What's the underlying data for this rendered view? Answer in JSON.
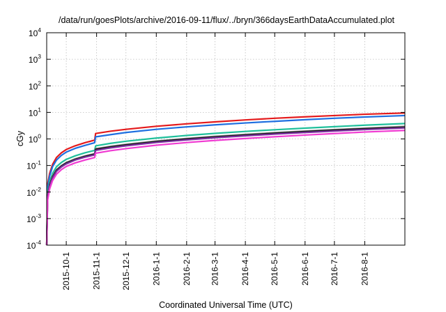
{
  "chart_data": {
    "type": "line",
    "title": "/data/run/goesPlots/archive/2016-09-11/flux/../bryn/366daysEarthDataAccumulated.plot",
    "xlabel": "Coordinated Universal Time (UTC)",
    "ylabel": "cGy",
    "x_scale": "time",
    "y_scale": "log",
    "xlim": [
      "2015-09-11",
      "2016-09-11"
    ],
    "ylim": [
      0.0001,
      10000
    ],
    "grid": true,
    "x_ticks": [
      "2015-10-1",
      "2015-11-1",
      "2015-12-1",
      "2016-1-1",
      "2016-2-1",
      "2016-3-1",
      "2016-4-1",
      "2016-5-1",
      "2016-6-1",
      "2016-7-1",
      "2016-8-1"
    ],
    "y_ticks": [
      {
        "base": "10",
        "exp": "-4",
        "value": 0.0001
      },
      {
        "base": "10",
        "exp": "-3",
        "value": 0.001
      },
      {
        "base": "10",
        "exp": "-2",
        "value": 0.01
      },
      {
        "base": "10",
        "exp": "-1",
        "value": 0.1
      },
      {
        "base": "10",
        "exp": "0",
        "value": 1
      },
      {
        "base": "10",
        "exp": "1",
        "value": 10
      },
      {
        "base": "10",
        "exp": "2",
        "value": 100
      },
      {
        "base": "10",
        "exp": "3",
        "value": 1000
      },
      {
        "base": "10",
        "exp": "4",
        "value": 10000
      }
    ],
    "series": [
      {
        "color": "#e41a1c",
        "points": [
          [
            "2015-09-11",
            0.0001
          ],
          [
            "2015-09-12",
            0.02
          ],
          [
            "2015-09-14",
            0.05
          ],
          [
            "2015-09-17",
            0.11
          ],
          [
            "2015-09-21",
            0.2
          ],
          [
            "2015-09-26",
            0.3
          ],
          [
            "2015-10-01",
            0.4
          ],
          [
            "2015-10-10",
            0.55
          ],
          [
            "2015-10-20",
            0.72
          ],
          [
            "2015-10-30",
            0.9
          ],
          [
            "2015-10-31",
            1.6
          ],
          [
            "2015-11-15",
            1.95
          ],
          [
            "2015-12-01",
            2.3
          ],
          [
            "2016-01-01",
            3.0
          ],
          [
            "2016-02-01",
            3.7
          ],
          [
            "2016-03-01",
            4.4
          ],
          [
            "2016-04-01",
            5.2
          ],
          [
            "2016-05-01",
            6.0
          ],
          [
            "2016-06-01",
            6.8
          ],
          [
            "2016-07-01",
            7.6
          ],
          [
            "2016-08-01",
            8.5
          ],
          [
            "2016-09-11",
            9.5
          ]
        ]
      },
      {
        "color": "#1f6fe0",
        "points": [
          [
            "2015-09-11",
            0.0001
          ],
          [
            "2015-09-12",
            0.015
          ],
          [
            "2015-09-14",
            0.04
          ],
          [
            "2015-09-17",
            0.09
          ],
          [
            "2015-09-21",
            0.16
          ],
          [
            "2015-09-26",
            0.24
          ],
          [
            "2015-10-01",
            0.32
          ],
          [
            "2015-10-10",
            0.44
          ],
          [
            "2015-10-20",
            0.57
          ],
          [
            "2015-10-30",
            0.72
          ],
          [
            "2015-10-31",
            1.2
          ],
          [
            "2015-11-15",
            1.45
          ],
          [
            "2015-12-01",
            1.75
          ],
          [
            "2016-01-01",
            2.3
          ],
          [
            "2016-02-01",
            2.85
          ],
          [
            "2016-03-01",
            3.4
          ],
          [
            "2016-04-01",
            4.0
          ],
          [
            "2016-05-01",
            4.6
          ],
          [
            "2016-06-01",
            5.3
          ],
          [
            "2016-07-01",
            6.0
          ],
          [
            "2016-08-01",
            6.7
          ],
          [
            "2016-09-11",
            7.6
          ]
        ]
      },
      {
        "color": "#1fbf9b",
        "points": [
          [
            "2015-09-11",
            0.0001
          ],
          [
            "2015-09-12",
            0.01
          ],
          [
            "2015-09-14",
            0.025
          ],
          [
            "2015-09-17",
            0.05
          ],
          [
            "2015-09-21",
            0.09
          ],
          [
            "2015-09-26",
            0.13
          ],
          [
            "2015-10-01",
            0.17
          ],
          [
            "2015-10-10",
            0.23
          ],
          [
            "2015-10-20",
            0.3
          ],
          [
            "2015-10-30",
            0.37
          ],
          [
            "2015-10-31",
            0.55
          ],
          [
            "2015-11-15",
            0.68
          ],
          [
            "2015-12-01",
            0.82
          ],
          [
            "2016-01-01",
            1.08
          ],
          [
            "2016-02-01",
            1.35
          ],
          [
            "2016-03-01",
            1.62
          ],
          [
            "2016-04-01",
            1.92
          ],
          [
            "2016-05-01",
            2.22
          ],
          [
            "2016-06-01",
            2.55
          ],
          [
            "2016-07-01",
            2.9
          ],
          [
            "2016-08-01",
            3.3
          ],
          [
            "2016-09-11",
            3.8
          ]
        ]
      },
      {
        "color": "#a6a6a6",
        "points": [
          [
            "2015-09-11",
            0.0001
          ],
          [
            "2015-09-12",
            0.008
          ],
          [
            "2015-09-14",
            0.02
          ],
          [
            "2015-09-17",
            0.04
          ],
          [
            "2015-09-21",
            0.07
          ],
          [
            "2015-09-26",
            0.1
          ],
          [
            "2015-10-01",
            0.13
          ],
          [
            "2015-10-10",
            0.18
          ],
          [
            "2015-10-20",
            0.23
          ],
          [
            "2015-10-30",
            0.28
          ],
          [
            "2015-10-31",
            0.43
          ],
          [
            "2015-11-15",
            0.53
          ],
          [
            "2015-12-01",
            0.63
          ],
          [
            "2016-01-01",
            0.84
          ],
          [
            "2016-02-01",
            1.05
          ],
          [
            "2016-03-01",
            1.27
          ],
          [
            "2016-04-01",
            1.5
          ],
          [
            "2016-05-01",
            1.74
          ],
          [
            "2016-06-01",
            2.0
          ],
          [
            "2016-07-01",
            2.27
          ],
          [
            "2016-08-01",
            2.56
          ],
          [
            "2016-09-11",
            3.0
          ]
        ]
      },
      {
        "color": "#1a1a1a",
        "points": [
          [
            "2015-09-11",
            0.0001
          ],
          [
            "2015-09-12",
            0.007
          ],
          [
            "2015-09-14",
            0.019
          ],
          [
            "2015-09-17",
            0.038
          ],
          [
            "2015-09-21",
            0.066
          ],
          [
            "2015-09-26",
            0.095
          ],
          [
            "2015-10-01",
            0.125
          ],
          [
            "2015-10-10",
            0.17
          ],
          [
            "2015-10-20",
            0.22
          ],
          [
            "2015-10-30",
            0.27
          ],
          [
            "2015-10-31",
            0.41
          ],
          [
            "2015-11-15",
            0.5
          ],
          [
            "2015-12-01",
            0.6
          ],
          [
            "2016-01-01",
            0.8
          ],
          [
            "2016-02-01",
            1.0
          ],
          [
            "2016-03-01",
            1.2
          ],
          [
            "2016-04-01",
            1.42
          ],
          [
            "2016-05-01",
            1.65
          ],
          [
            "2016-06-01",
            1.9
          ],
          [
            "2016-07-01",
            2.16
          ],
          [
            "2016-08-01",
            2.44
          ],
          [
            "2016-09-11",
            2.8
          ]
        ]
      },
      {
        "color": "#7b2fa0",
        "points": [
          [
            "2015-09-11",
            0.0001
          ],
          [
            "2015-09-12",
            0.0065
          ],
          [
            "2015-09-14",
            0.017
          ],
          [
            "2015-09-17",
            0.034
          ],
          [
            "2015-09-21",
            0.06
          ],
          [
            "2015-09-26",
            0.088
          ],
          [
            "2015-10-01",
            0.115
          ],
          [
            "2015-10-10",
            0.16
          ],
          [
            "2015-10-20",
            0.205
          ],
          [
            "2015-10-30",
            0.25
          ],
          [
            "2015-10-31",
            0.37
          ],
          [
            "2015-11-15",
            0.46
          ],
          [
            "2015-12-01",
            0.55
          ],
          [
            "2016-01-01",
            0.74
          ],
          [
            "2016-02-01",
            0.92
          ],
          [
            "2016-03-01",
            1.11
          ],
          [
            "2016-04-01",
            1.31
          ],
          [
            "2016-05-01",
            1.52
          ],
          [
            "2016-06-01",
            1.75
          ],
          [
            "2016-07-01",
            1.99
          ],
          [
            "2016-08-01",
            2.25
          ],
          [
            "2016-09-11",
            2.6
          ]
        ]
      },
      {
        "color": "#f03bd2",
        "points": [
          [
            "2015-09-11",
            0.0001
          ],
          [
            "2015-09-12",
            0.005
          ],
          [
            "2015-09-14",
            0.013
          ],
          [
            "2015-09-17",
            0.027
          ],
          [
            "2015-09-21",
            0.047
          ],
          [
            "2015-09-26",
            0.07
          ],
          [
            "2015-10-01",
            0.092
          ],
          [
            "2015-10-10",
            0.125
          ],
          [
            "2015-10-20",
            0.16
          ],
          [
            "2015-10-30",
            0.2
          ],
          [
            "2015-10-31",
            0.29
          ],
          [
            "2015-11-15",
            0.36
          ],
          [
            "2015-12-01",
            0.43
          ],
          [
            "2016-01-01",
            0.58
          ],
          [
            "2016-02-01",
            0.73
          ],
          [
            "2016-03-01",
            0.88
          ],
          [
            "2016-04-01",
            1.04
          ],
          [
            "2016-05-01",
            1.21
          ],
          [
            "2016-06-01",
            1.4
          ],
          [
            "2016-07-01",
            1.6
          ],
          [
            "2016-08-01",
            1.82
          ],
          [
            "2016-09-11",
            2.1
          ]
        ]
      }
    ]
  }
}
